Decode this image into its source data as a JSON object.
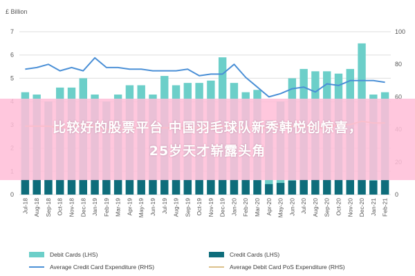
{
  "overlay": {
    "line1": "比较好的股票平台 中国羽毛球队新秀韩悦创惊喜，",
    "line2": "25岁天才崭露头角"
  },
  "colors": {
    "debit": "#6ccfc9",
    "credit": "#0e6d7b",
    "avg_credit": "#4a8fd6",
    "avg_debit": "#dcc08a",
    "grid": "#dddddd",
    "axis_text": "#555555"
  },
  "chart_data": {
    "type": "bar",
    "title": "",
    "left_axis_label": "£ Billion",
    "left_ylim": [
      0,
      7
    ],
    "left_ticks": [
      "0",
      "1",
      "2",
      "3",
      "4",
      "5",
      "6",
      "7"
    ],
    "right_ylim": [
      0,
      100
    ],
    "right_ticks": [
      "0",
      "20",
      "40",
      "60",
      "80",
      "100"
    ],
    "grid": true,
    "categories": [
      "Jul-18",
      "Aug-18",
      "Sep-18",
      "Oct-18",
      "Nov-18",
      "Dec-18",
      "Jan-19",
      "Feb-19",
      "Mar-19",
      "Apr-19",
      "May-19",
      "Jun-19",
      "Jul-19",
      "Aug-19",
      "Sep-19",
      "Oct-19",
      "Nov-19",
      "Dec-19",
      "Jan-20",
      "Feb-20",
      "Mar-20",
      "Apr-20",
      "May-20",
      "Jun-20",
      "Jul-20",
      "Aug-20",
      "Sep-20",
      "Oct-20",
      "Nov-20",
      "Dec-20",
      "Jan-21",
      "Feb-21"
    ],
    "series": [
      {
        "name": "Debit Cards (LHS)",
        "kind": "bar",
        "axis": "left",
        "values": [
          4.4,
          4.3,
          4.0,
          4.6,
          4.6,
          5.0,
          4.3,
          4.0,
          4.3,
          4.7,
          4.7,
          4.3,
          5.1,
          4.7,
          4.8,
          4.8,
          4.9,
          5.9,
          4.8,
          4.4,
          4.5,
          3.2,
          4.0,
          5.0,
          5.4,
          5.3,
          5.3,
          5.2,
          5.4,
          6.5,
          4.3,
          4.4
        ]
      },
      {
        "name": "Credit Cards (LHS)",
        "kind": "bar",
        "axis": "left",
        "values": [
          0.65,
          0.65,
          0.65,
          0.65,
          0.65,
          0.65,
          0.65,
          0.65,
          0.65,
          0.65,
          0.65,
          0.65,
          0.65,
          0.65,
          0.65,
          0.65,
          0.65,
          0.65,
          0.65,
          0.65,
          0.62,
          0.45,
          0.5,
          0.6,
          0.65,
          0.65,
          0.65,
          0.65,
          0.65,
          0.65,
          0.6,
          0.62
        ]
      },
      {
        "name": "Average Credit Card Expenditure (RHS)",
        "kind": "line",
        "axis": "right",
        "values": [
          77,
          78,
          80,
          76,
          78,
          76,
          84,
          78,
          78,
          77,
          77,
          76,
          76,
          76,
          77,
          73,
          74,
          74,
          80,
          72,
          66,
          60,
          62,
          65,
          66,
          63,
          68,
          67,
          70,
          70,
          70,
          69
        ]
      },
      {
        "name": "Average Debit Card PoS Expenditure (RHS)",
        "kind": "line",
        "axis": "right",
        "values": [
          42,
          42,
          42,
          41,
          42,
          43,
          42,
          40,
          40,
          41,
          41,
          41,
          41,
          41,
          41,
          41,
          41,
          42,
          41,
          41,
          41,
          41,
          42,
          42,
          42,
          41,
          41,
          43,
          43,
          45,
          44,
          44
        ]
      }
    ]
  }
}
